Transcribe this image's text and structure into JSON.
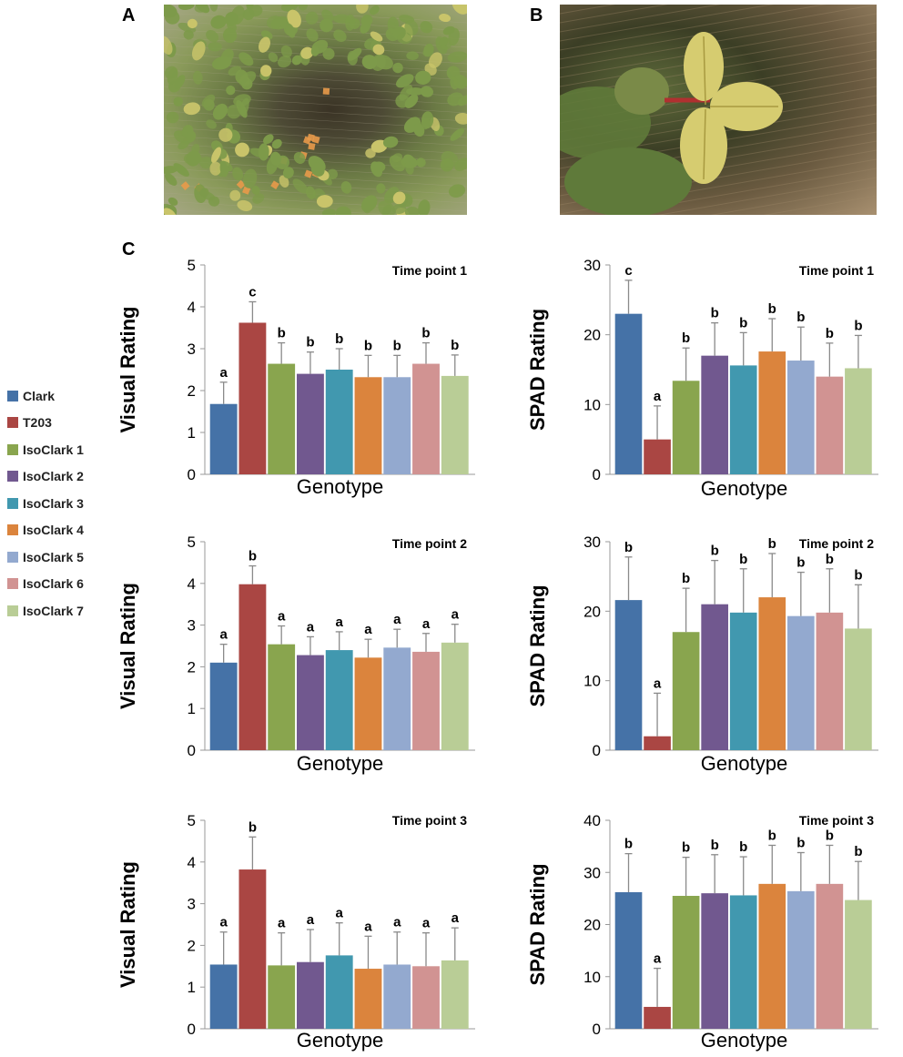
{
  "panel_labels": {
    "a": "A",
    "b": "B",
    "c": "C"
  },
  "photos": {
    "a": {
      "name": "soybean-plants-overview-photo",
      "colors": {
        "leaf": "#7d9a4a",
        "yellow_leaf": "#c9c46a",
        "tag": "#e89a4a",
        "mesh": "#b0a890"
      }
    },
    "b": {
      "name": "soybean-chlorotic-leaf-closeup-photo",
      "colors": {
        "leaf": "#5f7a3a",
        "yellow_leaf": "#d6cc70",
        "stem": "#b03030",
        "mesh": "#a08a6a"
      }
    }
  },
  "legend": [
    {
      "label": "Clark",
      "color": "#4572a7"
    },
    {
      "label": "T203",
      "color": "#aa4643"
    },
    {
      "label": "IsoClark 1",
      "color": "#89a54e"
    },
    {
      "label": "IsoClark 2",
      "color": "#71588f"
    },
    {
      "label": "IsoClark 3",
      "color": "#4198af"
    },
    {
      "label": "IsoClark 4",
      "color": "#db843d"
    },
    {
      "label": "IsoClark 5",
      "color": "#93a9cf"
    },
    {
      "label": "IsoClark 6",
      "color": "#d19392"
    },
    {
      "label": "IsoClark 7",
      "color": "#b9cd96"
    }
  ],
  "chart_data": [
    {
      "id": "visual-tp1",
      "type": "bar",
      "title": "Time point 1",
      "xlabel": "Genotype",
      "ylabel": "Visual Rating",
      "ylim": [
        0,
        5
      ],
      "yticks": [
        0,
        1,
        2,
        3,
        4,
        5
      ],
      "categories": [
        "Clark",
        "T203",
        "IsoClark 1",
        "IsoClark 2",
        "IsoClark 3",
        "IsoClark 4",
        "IsoClark 5",
        "IsoClark 6",
        "IsoClark 7"
      ],
      "values": [
        1.68,
        3.62,
        2.64,
        2.4,
        2.5,
        2.32,
        2.32,
        2.64,
        2.35
      ],
      "errors": [
        0.52,
        0.5,
        0.5,
        0.52,
        0.5,
        0.52,
        0.52,
        0.5,
        0.5
      ],
      "letters": [
        "a",
        "c",
        "b",
        "b",
        "b",
        "b",
        "b",
        "b",
        "b"
      ]
    },
    {
      "id": "spad-tp1",
      "type": "bar",
      "title": "Time point 1",
      "xlabel": "Genotype",
      "ylabel": "SPAD Rating",
      "ylim": [
        0,
        30
      ],
      "yticks": [
        0,
        10,
        20,
        30
      ],
      "categories": [
        "Clark",
        "T203",
        "IsoClark 1",
        "IsoClark 2",
        "IsoClark 3",
        "IsoClark 4",
        "IsoClark 5",
        "IsoClark 6",
        "IsoClark 7"
      ],
      "values": [
        23.0,
        5.0,
        13.4,
        17.0,
        15.6,
        17.6,
        16.3,
        14.0,
        15.2
      ],
      "errors": [
        4.8,
        4.8,
        4.7,
        4.7,
        4.7,
        4.7,
        4.8,
        4.8,
        4.7
      ],
      "letters": [
        "c",
        "a",
        "b",
        "b",
        "b",
        "b",
        "b",
        "b",
        "b"
      ]
    },
    {
      "id": "visual-tp2",
      "type": "bar",
      "title": "Time point 2",
      "xlabel": "Genotype",
      "ylabel": "Visual Rating",
      "ylim": [
        0,
        5
      ],
      "yticks": [
        0,
        1,
        2,
        3,
        4,
        5
      ],
      "categories": [
        "Clark",
        "T203",
        "IsoClark 1",
        "IsoClark 2",
        "IsoClark 3",
        "IsoClark 4",
        "IsoClark 5",
        "IsoClark 6",
        "IsoClark 7"
      ],
      "values": [
        2.1,
        3.98,
        2.54,
        2.28,
        2.4,
        2.22,
        2.46,
        2.36,
        2.58
      ],
      "errors": [
        0.44,
        0.44,
        0.44,
        0.44,
        0.44,
        0.44,
        0.44,
        0.44,
        0.44
      ],
      "letters": [
        "a",
        "b",
        "a",
        "a",
        "a",
        "a",
        "a",
        "a",
        "a"
      ]
    },
    {
      "id": "spad-tp2",
      "type": "bar",
      "title": "Time point 2",
      "xlabel": "Genotype",
      "ylabel": "SPAD Rating",
      "ylim": [
        0,
        30
      ],
      "yticks": [
        0,
        10,
        20,
        30
      ],
      "categories": [
        "Clark",
        "T203",
        "IsoClark 1",
        "IsoClark 2",
        "IsoClark 3",
        "IsoClark 4",
        "IsoClark 5",
        "IsoClark 6",
        "IsoClark 7"
      ],
      "values": [
        21.6,
        2.0,
        17.0,
        21.0,
        19.8,
        22.0,
        19.3,
        19.8,
        17.5
      ],
      "errors": [
        6.2,
        6.2,
        6.3,
        6.3,
        6.3,
        6.3,
        6.3,
        6.3,
        6.3
      ],
      "letters": [
        "b",
        "a",
        "b",
        "b",
        "b",
        "b",
        "b",
        "b",
        "b"
      ]
    },
    {
      "id": "visual-tp3",
      "type": "bar",
      "title": "Time point 3",
      "xlabel": "Genotype",
      "ylabel": "Visual Rating",
      "ylim": [
        0,
        5
      ],
      "yticks": [
        0,
        1,
        2,
        3,
        4,
        5
      ],
      "categories": [
        "Clark",
        "T203",
        "IsoClark 1",
        "IsoClark 2",
        "IsoClark 3",
        "IsoClark 4",
        "IsoClark 5",
        "IsoClark 6",
        "IsoClark 7"
      ],
      "values": [
        1.54,
        3.82,
        1.52,
        1.6,
        1.76,
        1.44,
        1.54,
        1.5,
        1.64
      ],
      "errors": [
        0.78,
        0.78,
        0.78,
        0.78,
        0.78,
        0.78,
        0.78,
        0.8,
        0.78
      ],
      "letters": [
        "a",
        "b",
        "a",
        "a",
        "a",
        "a",
        "a",
        "a",
        "a"
      ]
    },
    {
      "id": "spad-tp3",
      "type": "bar",
      "title": "Time point 3",
      "xlabel": "Genotype",
      "ylabel": "SPAD Rating",
      "ylim": [
        0,
        40
      ],
      "yticks": [
        0,
        10,
        20,
        30,
        40
      ],
      "categories": [
        "Clark",
        "T203",
        "IsoClark 1",
        "IsoClark 2",
        "IsoClark 3",
        "IsoClark 4",
        "IsoClark 5",
        "IsoClark 6",
        "IsoClark 7"
      ],
      "values": [
        26.2,
        4.2,
        25.5,
        26.0,
        25.6,
        27.8,
        26.4,
        27.8,
        24.7
      ],
      "errors": [
        7.4,
        7.4,
        7.4,
        7.4,
        7.4,
        7.4,
        7.4,
        7.4,
        7.4
      ],
      "letters": [
        "b",
        "a",
        "b",
        "b",
        "b",
        "b",
        "b",
        "b",
        "b"
      ]
    }
  ]
}
